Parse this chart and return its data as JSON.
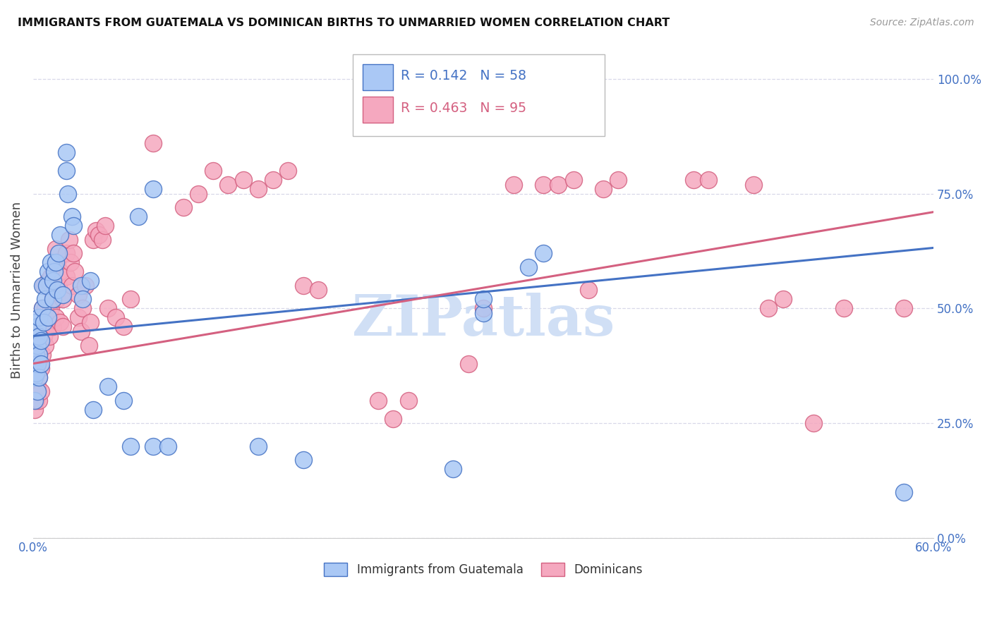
{
  "title": "IMMIGRANTS FROM GUATEMALA VS DOMINICAN BIRTHS TO UNMARRIED WOMEN CORRELATION CHART",
  "source": "Source: ZipAtlas.com",
  "ylabel_label": "Births to Unmarried Women",
  "legend_label1": "Immigrants from Guatemala",
  "legend_label2": "Dominicans",
  "R1": 0.142,
  "N1": 58,
  "R2": 0.463,
  "N2": 95,
  "color1": "#aac8f5",
  "color2": "#f5a8bf",
  "line_color1": "#4472c4",
  "line_color2": "#d46080",
  "watermark": "ZIPatlas",
  "watermark_color": "#d0dff5",
  "xlim": [
    0.0,
    0.6
  ],
  "ylim": [
    0.0,
    1.08
  ],
  "ytick_vals": [
    0.0,
    0.25,
    0.5,
    0.75,
    1.0
  ],
  "ytick_labels": [
    "0.0%",
    "25.0%",
    "50.0%",
    "75.0%",
    "100.0%"
  ],
  "xtick_vals": [
    0.0,
    0.1,
    0.2,
    0.3,
    0.4,
    0.5,
    0.6
  ],
  "xtick_labels": [
    "0.0%",
    "",
    "",
    "",
    "",
    "",
    "60.0%"
  ],
  "scatter_blue": [
    [
      0.001,
      0.3
    ],
    [
      0.001,
      0.35
    ],
    [
      0.001,
      0.38
    ],
    [
      0.001,
      0.42
    ],
    [
      0.002,
      0.36
    ],
    [
      0.002,
      0.4
    ],
    [
      0.002,
      0.44
    ],
    [
      0.002,
      0.47
    ],
    [
      0.003,
      0.32
    ],
    [
      0.003,
      0.38
    ],
    [
      0.003,
      0.42
    ],
    [
      0.003,
      0.46
    ],
    [
      0.004,
      0.35
    ],
    [
      0.004,
      0.4
    ],
    [
      0.004,
      0.44
    ],
    [
      0.004,
      0.48
    ],
    [
      0.005,
      0.38
    ],
    [
      0.005,
      0.43
    ],
    [
      0.006,
      0.5
    ],
    [
      0.006,
      0.55
    ],
    [
      0.007,
      0.47
    ],
    [
      0.008,
      0.52
    ],
    [
      0.009,
      0.55
    ],
    [
      0.01,
      0.48
    ],
    [
      0.01,
      0.58
    ],
    [
      0.012,
      0.6
    ],
    [
      0.013,
      0.52
    ],
    [
      0.013,
      0.56
    ],
    [
      0.014,
      0.58
    ],
    [
      0.015,
      0.6
    ],
    [
      0.016,
      0.54
    ],
    [
      0.017,
      0.62
    ],
    [
      0.018,
      0.66
    ],
    [
      0.02,
      0.53
    ],
    [
      0.022,
      0.8
    ],
    [
      0.022,
      0.84
    ],
    [
      0.023,
      0.75
    ],
    [
      0.026,
      0.7
    ],
    [
      0.027,
      0.68
    ],
    [
      0.032,
      0.55
    ],
    [
      0.033,
      0.52
    ],
    [
      0.038,
      0.56
    ],
    [
      0.04,
      0.28
    ],
    [
      0.05,
      0.33
    ],
    [
      0.06,
      0.3
    ],
    [
      0.065,
      0.2
    ],
    [
      0.08,
      0.2
    ],
    [
      0.09,
      0.2
    ],
    [
      0.15,
      0.2
    ],
    [
      0.18,
      0.17
    ],
    [
      0.28,
      0.15
    ],
    [
      0.3,
      0.49
    ],
    [
      0.33,
      0.59
    ],
    [
      0.34,
      0.62
    ],
    [
      0.58,
      0.1
    ],
    [
      0.08,
      0.76
    ],
    [
      0.3,
      0.52
    ],
    [
      0.07,
      0.7
    ]
  ],
  "scatter_pink": [
    [
      0.001,
      0.28
    ],
    [
      0.001,
      0.32
    ],
    [
      0.001,
      0.36
    ],
    [
      0.001,
      0.4
    ],
    [
      0.002,
      0.3
    ],
    [
      0.002,
      0.35
    ],
    [
      0.002,
      0.42
    ],
    [
      0.003,
      0.33
    ],
    [
      0.003,
      0.38
    ],
    [
      0.003,
      0.44
    ],
    [
      0.004,
      0.3
    ],
    [
      0.004,
      0.35
    ],
    [
      0.004,
      0.4
    ],
    [
      0.005,
      0.32
    ],
    [
      0.005,
      0.37
    ],
    [
      0.005,
      0.45
    ],
    [
      0.006,
      0.4
    ],
    [
      0.006,
      0.5
    ],
    [
      0.007,
      0.44
    ],
    [
      0.007,
      0.55
    ],
    [
      0.008,
      0.42
    ],
    [
      0.008,
      0.5
    ],
    [
      0.009,
      0.46
    ],
    [
      0.01,
      0.48
    ],
    [
      0.01,
      0.56
    ],
    [
      0.011,
      0.44
    ],
    [
      0.012,
      0.5
    ],
    [
      0.012,
      0.57
    ],
    [
      0.013,
      0.46
    ],
    [
      0.013,
      0.53
    ],
    [
      0.014,
      0.58
    ],
    [
      0.015,
      0.48
    ],
    [
      0.015,
      0.63
    ],
    [
      0.016,
      0.52
    ],
    [
      0.016,
      0.6
    ],
    [
      0.017,
      0.55
    ],
    [
      0.018,
      0.47
    ],
    [
      0.018,
      0.58
    ],
    [
      0.019,
      0.53
    ],
    [
      0.02,
      0.46
    ],
    [
      0.02,
      0.52
    ],
    [
      0.022,
      0.62
    ],
    [
      0.022,
      0.57
    ],
    [
      0.024,
      0.65
    ],
    [
      0.025,
      0.6
    ],
    [
      0.026,
      0.55
    ],
    [
      0.027,
      0.62
    ],
    [
      0.028,
      0.58
    ],
    [
      0.03,
      0.48
    ],
    [
      0.03,
      0.53
    ],
    [
      0.032,
      0.45
    ],
    [
      0.033,
      0.5
    ],
    [
      0.035,
      0.55
    ],
    [
      0.037,
      0.42
    ],
    [
      0.038,
      0.47
    ],
    [
      0.04,
      0.65
    ],
    [
      0.042,
      0.67
    ],
    [
      0.044,
      0.66
    ],
    [
      0.046,
      0.65
    ],
    [
      0.048,
      0.68
    ],
    [
      0.05,
      0.5
    ],
    [
      0.055,
      0.48
    ],
    [
      0.06,
      0.46
    ],
    [
      0.065,
      0.52
    ],
    [
      0.1,
      0.72
    ],
    [
      0.11,
      0.75
    ],
    [
      0.12,
      0.8
    ],
    [
      0.13,
      0.77
    ],
    [
      0.14,
      0.78
    ],
    [
      0.15,
      0.76
    ],
    [
      0.16,
      0.78
    ],
    [
      0.17,
      0.8
    ],
    [
      0.18,
      0.55
    ],
    [
      0.19,
      0.54
    ],
    [
      0.23,
      0.3
    ],
    [
      0.24,
      0.26
    ],
    [
      0.25,
      0.3
    ],
    [
      0.29,
      0.38
    ],
    [
      0.3,
      0.5
    ],
    [
      0.32,
      0.77
    ],
    [
      0.34,
      0.77
    ],
    [
      0.35,
      0.77
    ],
    [
      0.36,
      0.78
    ],
    [
      0.38,
      0.76
    ],
    [
      0.39,
      0.78
    ],
    [
      0.44,
      0.78
    ],
    [
      0.45,
      0.78
    ],
    [
      0.48,
      0.77
    ],
    [
      0.52,
      0.25
    ],
    [
      0.54,
      0.5
    ],
    [
      0.58,
      0.5
    ],
    [
      0.08,
      0.86
    ],
    [
      0.37,
      0.54
    ],
    [
      0.5,
      0.52
    ],
    [
      0.49,
      0.5
    ]
  ],
  "background_color": "#ffffff",
  "grid_color": "#d8d8e8",
  "figsize": [
    14.06,
    8.92
  ],
  "dpi": 100
}
